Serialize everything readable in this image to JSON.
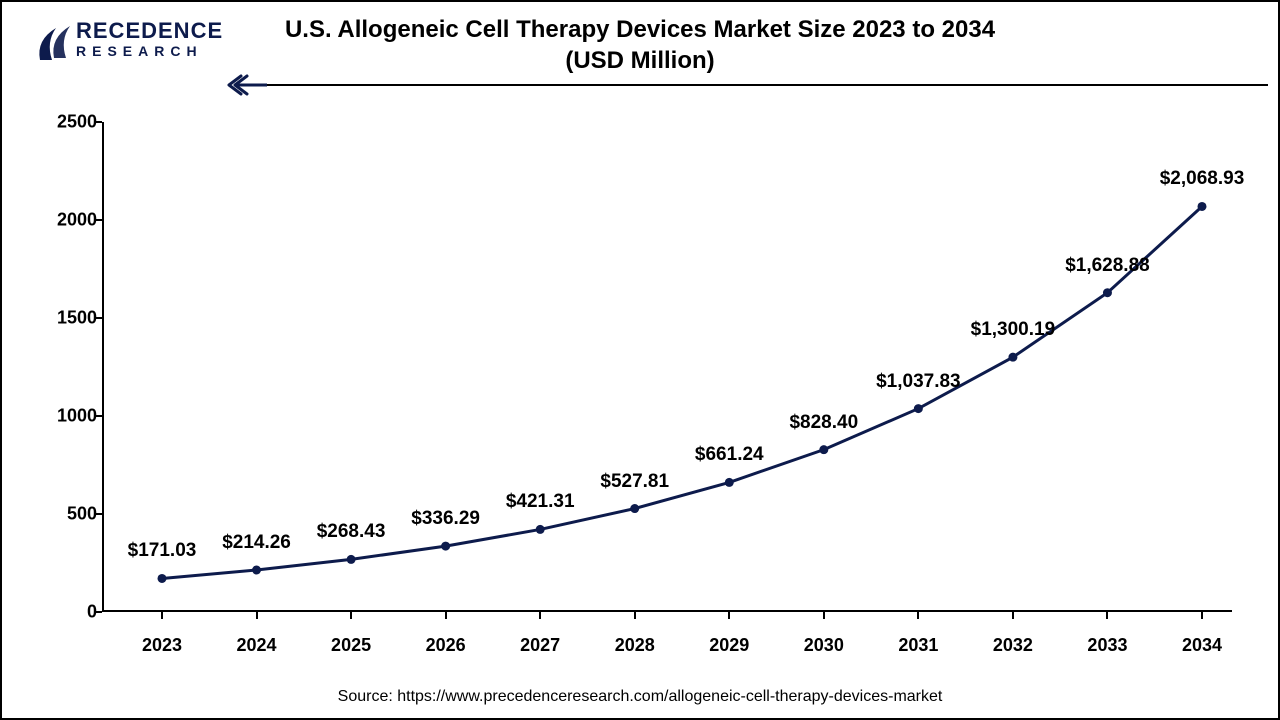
{
  "logo": {
    "top": "RECEDENCE",
    "bottom": "RESEARCH",
    "color": "#0d1b4c"
  },
  "chart": {
    "type": "line",
    "title": "U.S. Allogeneic Cell Therapy Devices Market Size 2023 to 2034\n(USD Million)",
    "title_fontsize": 24,
    "background_color": "#ffffff",
    "line_color": "#0d1b4c",
    "line_width": 3,
    "marker_color": "#0d1b4c",
    "marker_size": 6,
    "axis_color": "#000000",
    "label_color": "#000000",
    "label_fontsize": 18,
    "data_label_fontsize": 19,
    "ylim": [
      0,
      2500
    ],
    "ytick_step": 500,
    "yticks": [
      0,
      500,
      1000,
      1500,
      2000,
      2500
    ],
    "categories": [
      "2023",
      "2024",
      "2025",
      "2026",
      "2027",
      "2028",
      "2029",
      "2030",
      "2031",
      "2032",
      "2033",
      "2034"
    ],
    "values": [
      171.03,
      214.26,
      268.43,
      336.29,
      421.31,
      527.81,
      661.24,
      828.4,
      1037.83,
      1300.19,
      1628.88,
      2068.93
    ],
    "data_labels": [
      "$171.03",
      "$214.26",
      "$268.43",
      "$336.29",
      "$421.31",
      "$527.81",
      "$661.24",
      "$828.40",
      "$1,037.83",
      "$1,300.19",
      "$1,628.88",
      "$2,068.93"
    ]
  },
  "source": "Source: https://www.precedenceresearch.com/allogeneic-cell-therapy-devices-market"
}
